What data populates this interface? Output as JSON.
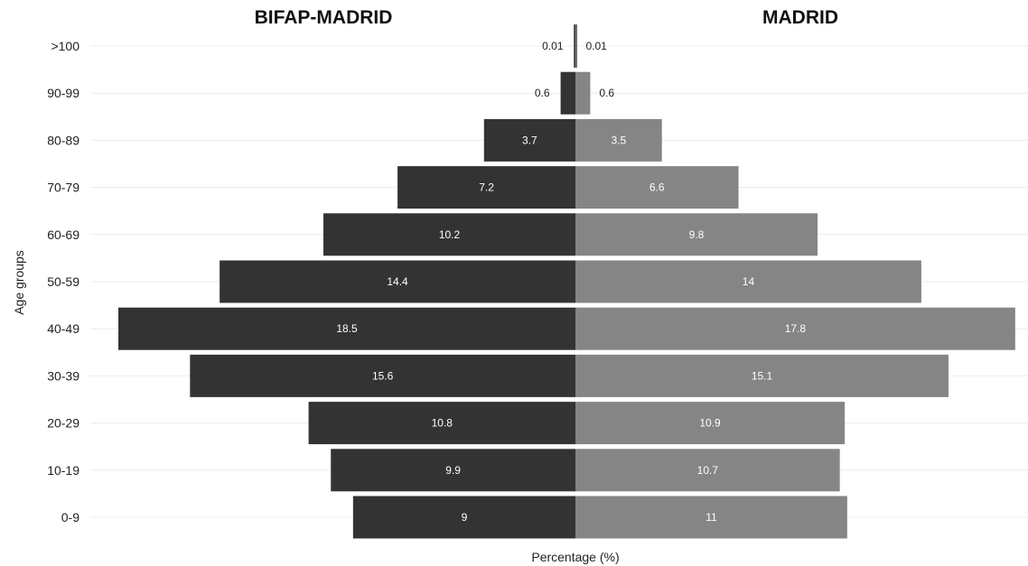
{
  "chart_data": {
    "type": "bar",
    "orientation": "horizontal-pyramid",
    "categories": [
      ">100",
      "90-99",
      "80-89",
      "70-79",
      "60-69",
      "50-59",
      "40-49",
      "30-39",
      "20-29",
      "10-19",
      "0-9"
    ],
    "series": [
      {
        "name": "BIFAP-MADRID",
        "side": "left",
        "color": "#333333",
        "values": [
          0.01,
          0.6,
          3.7,
          7.2,
          10.2,
          14.4,
          18.5,
          15.6,
          10.8,
          9.9,
          9
        ],
        "labels": [
          "0.01",
          "0.6",
          "3.7",
          "7.2",
          "10.2",
          "14.4",
          "18.5",
          "15.6",
          "10.8",
          "9.9",
          "9"
        ]
      },
      {
        "name": "MADRID",
        "side": "right",
        "color": "#858585",
        "values": [
          0.01,
          0.6,
          3.5,
          6.6,
          9.8,
          14,
          17.8,
          15.1,
          10.9,
          10.7,
          11
        ],
        "labels": [
          "0.01",
          "0.6",
          "3.5",
          "6.6",
          "9.8",
          "14",
          "17.8",
          "15.1",
          "10.9",
          "10.7",
          "11"
        ]
      }
    ],
    "xlabel": "Percentage (%)",
    "ylabel": "Age groups",
    "xlim": [
      0,
      18.5
    ],
    "grid": "horizontal",
    "legend": "none"
  }
}
